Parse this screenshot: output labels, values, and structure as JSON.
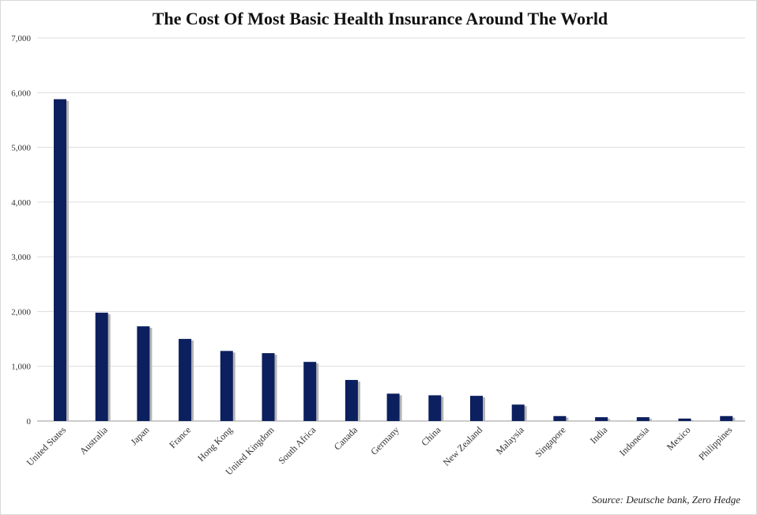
{
  "chart_data": {
    "type": "bar",
    "title": "The Cost Of Most Basic Health Insurance Around The World",
    "xlabel": "",
    "ylabel": "",
    "ylim": [
      0,
      7000
    ],
    "yticks": [
      0,
      1000,
      2000,
      3000,
      4000,
      5000,
      6000,
      7000
    ],
    "ytick_labels": [
      "0",
      "1,000",
      "2,000",
      "3,000",
      "4,000",
      "5,000",
      "6,000",
      "7,000"
    ],
    "grid": true,
    "legend": "none",
    "categories": [
      "United States",
      "Australia",
      "Japan",
      "France",
      "Hong Kong",
      "United Kingdom",
      "South Africa",
      "Canada",
      "Germany",
      "China",
      "New Zealand",
      "Malaysia",
      "Singapore",
      "India",
      "Indonesia",
      "Mexico",
      "Philippines"
    ],
    "values": [
      5880,
      1980,
      1730,
      1500,
      1280,
      1240,
      1080,
      750,
      500,
      470,
      460,
      300,
      90,
      70,
      70,
      45,
      90
    ],
    "source": "Source: Deutsche bank, Zero Hedge"
  },
  "colors": {
    "bar": "#0c1f5e",
    "bar_shadow": "#b5b5b5",
    "grid": "#dcdcdc",
    "axis": "#9a9a9a",
    "text": "#222222"
  }
}
